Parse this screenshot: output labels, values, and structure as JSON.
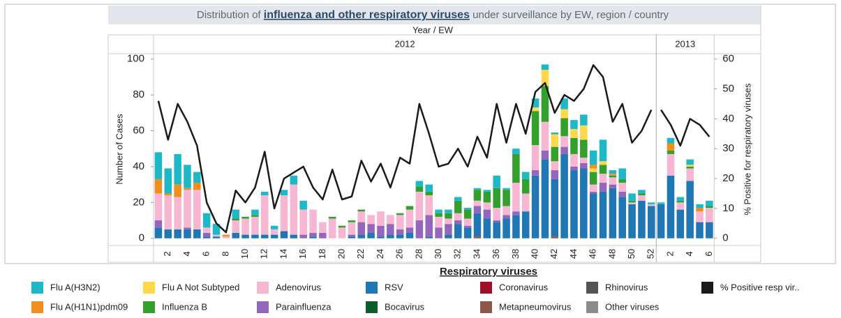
{
  "chart_data": {
    "type": "stacked_bar_line",
    "title_parts": [
      "Distribution of ",
      "influenza and other respiratory viruses",
      " under surveillance by EW, region / country"
    ],
    "x_header": "Year  /  EW",
    "ylabel": "Number of Cases",
    "y2label": "% Positive for respiratory viruses",
    "legend_title": "Respiratory viruses",
    "periods": [
      {
        "label": "2012",
        "weeks": [
          null,
          "2",
          null,
          "4",
          null,
          "6",
          null,
          "8",
          null,
          "10",
          null,
          "12",
          null,
          "14",
          null,
          "16",
          null,
          "18",
          null,
          "20",
          null,
          "22",
          null,
          "24",
          null,
          "26",
          null,
          "28",
          null,
          "30",
          null,
          "32",
          null,
          "34",
          null,
          "36",
          null,
          "38",
          null,
          "40",
          null,
          "42",
          null,
          "44",
          null,
          "46",
          null,
          "48",
          null,
          "50",
          null,
          "52"
        ]
      },
      {
        "label": "2013",
        "weeks": [
          null,
          "2",
          null,
          "4",
          null,
          "6"
        ]
      }
    ],
    "ylim": [
      -4,
      103
    ],
    "yticks": [
      0,
      20,
      40,
      60,
      80,
      100
    ],
    "y2lim": [
      -2.4,
      61.8
    ],
    "y2ticks": [
      0,
      10,
      20,
      30,
      40,
      50,
      60
    ],
    "series": [
      {
        "name": "Flu A(H3N2)",
        "color": "#1fb8c8",
        "type": "bar",
        "values": [
          15,
          14,
          17,
          13,
          6,
          8,
          6,
          0,
          5,
          0,
          3,
          2,
          2,
          3,
          5,
          5,
          0,
          0,
          0,
          0,
          0,
          0,
          0,
          0,
          0,
          0,
          0,
          3,
          4,
          2,
          2,
          2,
          1,
          1,
          1,
          7,
          1,
          3,
          4,
          5,
          3,
          1,
          6,
          5,
          6,
          8,
          12,
          2,
          6,
          4,
          2,
          1,
          1,
          3,
          2,
          3,
          2,
          3
        ]
      },
      {
        "name": "Flu A(H1N1)pdm09",
        "color": "#f28e1c",
        "type": "bar",
        "values": [
          8,
          1,
          7,
          1,
          4,
          0,
          0,
          1,
          0,
          0,
          0,
          0,
          0,
          0,
          0,
          0,
          0,
          0,
          0,
          0,
          0,
          0,
          0,
          0,
          0,
          0,
          0,
          0,
          0,
          0,
          0,
          0,
          0,
          0,
          0,
          0,
          0,
          0,
          0,
          0,
          0,
          0,
          0,
          0,
          0,
          2,
          0,
          1,
          0,
          0,
          0,
          0,
          0,
          4,
          0,
          0,
          2,
          0
        ]
      },
      {
        "name": "Flu A Not Subtyped",
        "color": "#ffd94a",
        "type": "bar",
        "values": [
          0,
          0,
          0,
          0,
          0,
          0,
          0,
          0,
          0,
          0,
          0,
          0,
          0,
          0,
          0,
          0,
          0,
          0,
          0,
          0,
          0,
          0,
          0,
          0,
          0,
          0,
          0,
          0,
          0,
          0,
          0,
          0,
          0,
          0,
          0,
          0,
          0,
          0,
          0,
          2,
          9,
          7,
          5,
          5,
          8,
          2,
          2,
          0,
          0,
          0,
          0,
          0,
          0,
          0,
          0,
          1,
          0,
          0
        ]
      },
      {
        "name": "Influenza B",
        "color": "#33a02c",
        "type": "bar",
        "values": [
          0,
          0,
          0,
          0,
          0,
          0,
          0,
          0,
          1,
          1,
          1,
          0,
          0,
          0,
          0,
          0,
          0,
          0,
          1,
          1,
          1,
          1,
          0,
          0,
          0,
          1,
          2,
          3,
          2,
          2,
          3,
          7,
          5,
          6,
          6,
          11,
          9,
          16,
          8,
          19,
          20,
          8,
          10,
          9,
          10,
          7,
          5,
          1,
          2,
          1,
          1,
          0,
          0,
          2,
          1,
          1,
          0,
          1
        ]
      },
      {
        "name": "Adenovirus",
        "color": "#f7b6d2",
        "type": "bar",
        "values": [
          15,
          19,
          18,
          21,
          22,
          3,
          1,
          1,
          7,
          9,
          10,
          22,
          3,
          20,
          28,
          14,
          13,
          6,
          11,
          6,
          7,
          6,
          5,
          8,
          5,
          8,
          10,
          16,
          11,
          6,
          3,
          4,
          4,
          3,
          4,
          7,
          5,
          16,
          10,
          14,
          16,
          5,
          6,
          7,
          3,
          4,
          5,
          4,
          5,
          1,
          3,
          1,
          0,
          12,
          4,
          7,
          6,
          8
        ]
      },
      {
        "name": "Parainfluenza",
        "color": "#9467bd",
        "type": "bar",
        "values": [
          4,
          0,
          0,
          1,
          0,
          2,
          0,
          0,
          0,
          0,
          0,
          0,
          0,
          0,
          0,
          2,
          2,
          3,
          0,
          0,
          1,
          7,
          5,
          6,
          6,
          3,
          3,
          10,
          12,
          6,
          6,
          2,
          1,
          4,
          5,
          1,
          2,
          2,
          0,
          3,
          5,
          5,
          4,
          2,
          3,
          1,
          5,
          2,
          3,
          0,
          0,
          0,
          0,
          0,
          0,
          0,
          0,
          0
        ]
      },
      {
        "name": "RSV",
        "color": "#1f77b4",
        "type": "bar",
        "values": [
          6,
          5,
          5,
          5,
          5,
          1,
          1,
          0,
          3,
          2,
          2,
          2,
          2,
          4,
          2,
          0,
          1,
          0,
          0,
          0,
          1,
          2,
          3,
          1,
          2,
          2,
          3,
          0,
          1,
          0,
          2,
          8,
          6,
          13,
          11,
          9,
          11,
          13,
          15,
          35,
          44,
          32,
          47,
          38,
          39,
          25,
          26,
          28,
          23,
          19,
          21,
          18,
          19,
          35,
          16,
          32,
          9,
          9
        ]
      },
      {
        "name": "Bocavirus",
        "color": "#0b5e2b",
        "type": "bar",
        "values": [
          0,
          0,
          0,
          0,
          0,
          0,
          0,
          0,
          0,
          0,
          0,
          0,
          0,
          0,
          0,
          0,
          0,
          0,
          0,
          0,
          0,
          0,
          0,
          0,
          0,
          0,
          0,
          0,
          0,
          0,
          0,
          0,
          0,
          0,
          0,
          0,
          0,
          0,
          0,
          0,
          0,
          0,
          0,
          0,
          0,
          0,
          0,
          0,
          0,
          0,
          0,
          0,
          0,
          0,
          0,
          0,
          0,
          0
        ]
      },
      {
        "name": "Coronavirus",
        "color": "#9b0f2b",
        "type": "bar",
        "values": [
          0,
          0,
          0,
          0,
          0,
          0,
          0,
          0,
          0,
          0,
          0,
          0,
          0,
          0,
          0,
          0,
          0,
          0,
          0,
          0,
          0,
          0,
          0,
          0,
          0,
          0,
          0,
          0,
          0,
          0,
          0,
          0,
          0,
          0,
          0,
          0,
          0,
          0,
          0,
          0,
          0,
          0,
          0,
          0,
          0,
          0,
          0,
          0,
          0,
          0,
          0,
          0,
          0,
          0,
          0,
          0,
          0,
          0
        ]
      },
      {
        "name": "Metapneumovirus",
        "color": "#8c564b",
        "type": "bar",
        "values": [
          0,
          0,
          0,
          0,
          0,
          0,
          0,
          0,
          0,
          0,
          0,
          0,
          0,
          0,
          0,
          0,
          0,
          0,
          0,
          0,
          0,
          0,
          0,
          0,
          0,
          0,
          0,
          0,
          0,
          0,
          0,
          0,
          0,
          1,
          0,
          0,
          0,
          0,
          0,
          0,
          0,
          1,
          0,
          0,
          0,
          0,
          0,
          0,
          0,
          0,
          0,
          0,
          0,
          0,
          0,
          0,
          0,
          0
        ]
      },
      {
        "name": "Rhinovirus",
        "color": "#555555",
        "type": "bar",
        "values": [
          0,
          0,
          0,
          0,
          0,
          0,
          0,
          0,
          0,
          0,
          0,
          0,
          0,
          0,
          0,
          0,
          0,
          0,
          0,
          0,
          0,
          0,
          0,
          0,
          0,
          0,
          0,
          0,
          0,
          0,
          0,
          0,
          0,
          0,
          0,
          0,
          0,
          0,
          0,
          0,
          0,
          0,
          0,
          0,
          0,
          0,
          0,
          0,
          0,
          0,
          0,
          0,
          0,
          0,
          0,
          0,
          0,
          0
        ]
      },
      {
        "name": "Other viruses",
        "color": "#8c8c8c",
        "type": "bar",
        "values": [
          0,
          0,
          0,
          0,
          0,
          0,
          0,
          0,
          0,
          0,
          0,
          0,
          0,
          0,
          0,
          0,
          0,
          0,
          0,
          0,
          0,
          0,
          0,
          0,
          0,
          0,
          0,
          0,
          0,
          0,
          0,
          0,
          0,
          0,
          0,
          0,
          0,
          0,
          0,
          0,
          0,
          0,
          0,
          0,
          0,
          0,
          0,
          0,
          0,
          0,
          0,
          0,
          0,
          0,
          0,
          0,
          0,
          0
        ]
      },
      {
        "name": "% Positive resp vir..",
        "color": "#1a1a1a",
        "type": "line",
        "axis": "y2",
        "values": [
          46,
          33,
          45,
          39,
          31,
          12,
          5,
          2,
          16,
          12,
          17,
          29,
          10,
          20,
          22,
          24,
          17,
          13,
          23,
          13,
          14,
          26,
          19,
          25,
          17,
          27,
          25,
          45,
          35,
          24,
          25,
          30,
          24,
          34,
          27,
          45,
          32,
          45,
          35,
          49,
          52,
          42,
          48,
          46,
          50,
          58,
          54,
          39,
          45,
          32,
          36,
          43,
          43,
          38,
          31,
          40,
          38,
          34
        ]
      }
    ]
  }
}
